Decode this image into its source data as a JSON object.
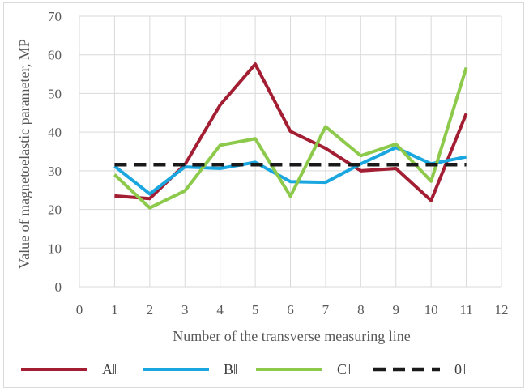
{
  "chart_data": {
    "type": "line",
    "xlabel": "Number of the transverse measuring line",
    "ylabel": "Value of magnetoelastic parameter, MP",
    "xlim": [
      0,
      12
    ],
    "ylim": [
      0,
      70
    ],
    "xticks": [
      0,
      1,
      2,
      3,
      4,
      5,
      6,
      7,
      8,
      9,
      10,
      11,
      12
    ],
    "yticks": [
      0,
      10,
      20,
      30,
      40,
      50,
      60,
      70
    ],
    "grid": "horizontal and vertical",
    "legend_position": "bottom",
    "x": [
      1,
      2,
      3,
      4,
      5,
      6,
      7,
      8,
      9,
      10,
      11
    ],
    "series": [
      {
        "name": "A‖",
        "color": "#a31e33",
        "dash": "solid",
        "values": [
          23.5,
          22.8,
          31.6,
          47.0,
          57.6,
          40.2,
          35.8,
          30.0,
          30.6,
          22.3,
          44.8
        ]
      },
      {
        "name": "B‖",
        "color": "#1aa7e0",
        "dash": "solid",
        "values": [
          31.2,
          24.0,
          31.0,
          30.6,
          32.2,
          27.2,
          27.0,
          31.8,
          36.0,
          31.8,
          33.6
        ]
      },
      {
        "name": "C‖",
        "color": "#8dca4c",
        "dash": "solid",
        "values": [
          29.0,
          20.4,
          24.8,
          36.6,
          38.3,
          23.4,
          41.4,
          33.9,
          36.9,
          27.3,
          56.7
        ]
      },
      {
        "name": "0‖",
        "color": "#1a1a1a",
        "dash": "dashed",
        "values": [
          31.6,
          31.6,
          31.6,
          31.6,
          31.6,
          31.6,
          31.6,
          31.6,
          31.6,
          31.6,
          31.6
        ]
      }
    ]
  }
}
